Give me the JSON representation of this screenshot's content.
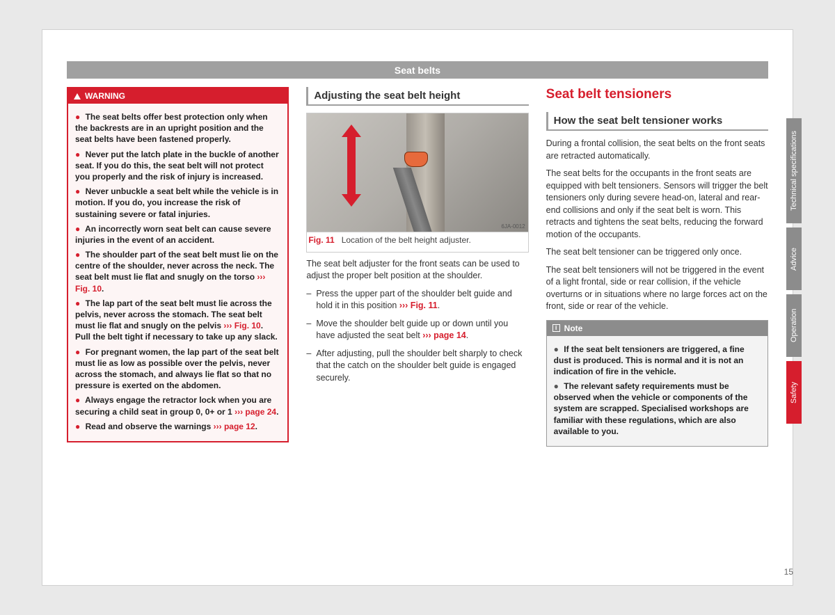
{
  "page": {
    "title": "Seat belts",
    "number": "15"
  },
  "warning": {
    "label": "WARNING",
    "items": [
      {
        "pre": "The seat belts offer best protection only when the backrests are in an upright position and the seat belts have been fastened properly."
      },
      {
        "pre": "Never put the latch plate in the buckle of another seat. If you do this, the seat belt will not protect you properly and the risk of injury is increased."
      },
      {
        "pre": "Never unbuckle a seat belt while the vehicle is in motion. If you do, you increase the risk of sustaining severe or fatal injuries."
      },
      {
        "pre": "An incorrectly worn seat belt can cause severe injuries in the event of an accident."
      },
      {
        "pre": "The shoulder part of the seat belt must lie on the centre of the shoulder, never across the neck. The seat belt must lie flat and snugly on the torso ",
        "ref": "››› Fig. 10",
        "post": "."
      },
      {
        "pre": "The lap part of the seat belt must lie across the pelvis, never across the stomach. The seat belt must lie flat and snugly on the pelvis ",
        "ref": "››› Fig. 10",
        "post": ". Pull the belt tight if necessary to take up any slack."
      },
      {
        "pre": "For pregnant women, the lap part of the seat belt must lie as low as possible over the pelvis, never across the stomach, and always lie flat so that no pressure is exerted on the abdomen."
      },
      {
        "pre": "Always engage the retractor lock when you are securing a child seat in group 0, 0+ or 1 ",
        "ref": "››› page 24",
        "post": "."
      },
      {
        "pre": "Read and observe the warnings ",
        "ref": "››› page 12",
        "post": "."
      }
    ]
  },
  "middle": {
    "heading": "Adjusting the seat belt height",
    "figure": {
      "num": "Fig. 11",
      "caption": "Location of the belt height adjuster.",
      "code": "6JA-0012"
    },
    "intro": "The seat belt adjuster for the front seats can be used to adjust the proper belt position at the shoulder.",
    "steps": [
      {
        "pre": "Press the upper part of the shoulder belt guide and hold it in this position ",
        "ref": "››› Fig. 11",
        "post": "."
      },
      {
        "pre": "Move the shoulder belt guide up or down until you have adjusted the seat belt ",
        "ref": "››› page 14",
        "post": "."
      },
      {
        "pre": "After adjusting, pull the shoulder belt sharply to check that the catch on the shoulder belt guide is engaged securely."
      }
    ]
  },
  "right": {
    "mainHeading": "Seat belt tensioners",
    "subHeading": "How the seat belt tensioner works",
    "paras": [
      "During a frontal collision, the seat belts on the front seats are retracted automatically.",
      "The seat belts for the occupants in the front seats are equipped with belt tensioners. Sensors will trigger the belt tensioners only during severe head-on, lateral and rear-end collisions and only if the seat belt is worn. This retracts and tightens the seat belts, reducing the forward motion of the occupants.",
      "The seat belt tensioner can be triggered only once.",
      "The seat belt tensioners will not be triggered in the event of a light frontal, side or rear collision, if the vehicle overturns or in situations where no large forces act on the front, side or rear of the vehicle."
    ],
    "note": {
      "label": "Note",
      "items": [
        "If the seat belt tensioners are triggered, a fine dust is produced. This is normal and it is not an indication of fire in the vehicle.",
        "The relevant safety requirements must be observed when the vehicle or components of the system are scrapped. Specialised workshops are familiar with these regulations, which are also available to you."
      ]
    }
  },
  "tabs": [
    {
      "label": "Technical specifications",
      "active": false
    },
    {
      "label": "Advice",
      "active": false
    },
    {
      "label": "Operation",
      "active": false
    },
    {
      "label": "Safety",
      "active": true
    }
  ]
}
